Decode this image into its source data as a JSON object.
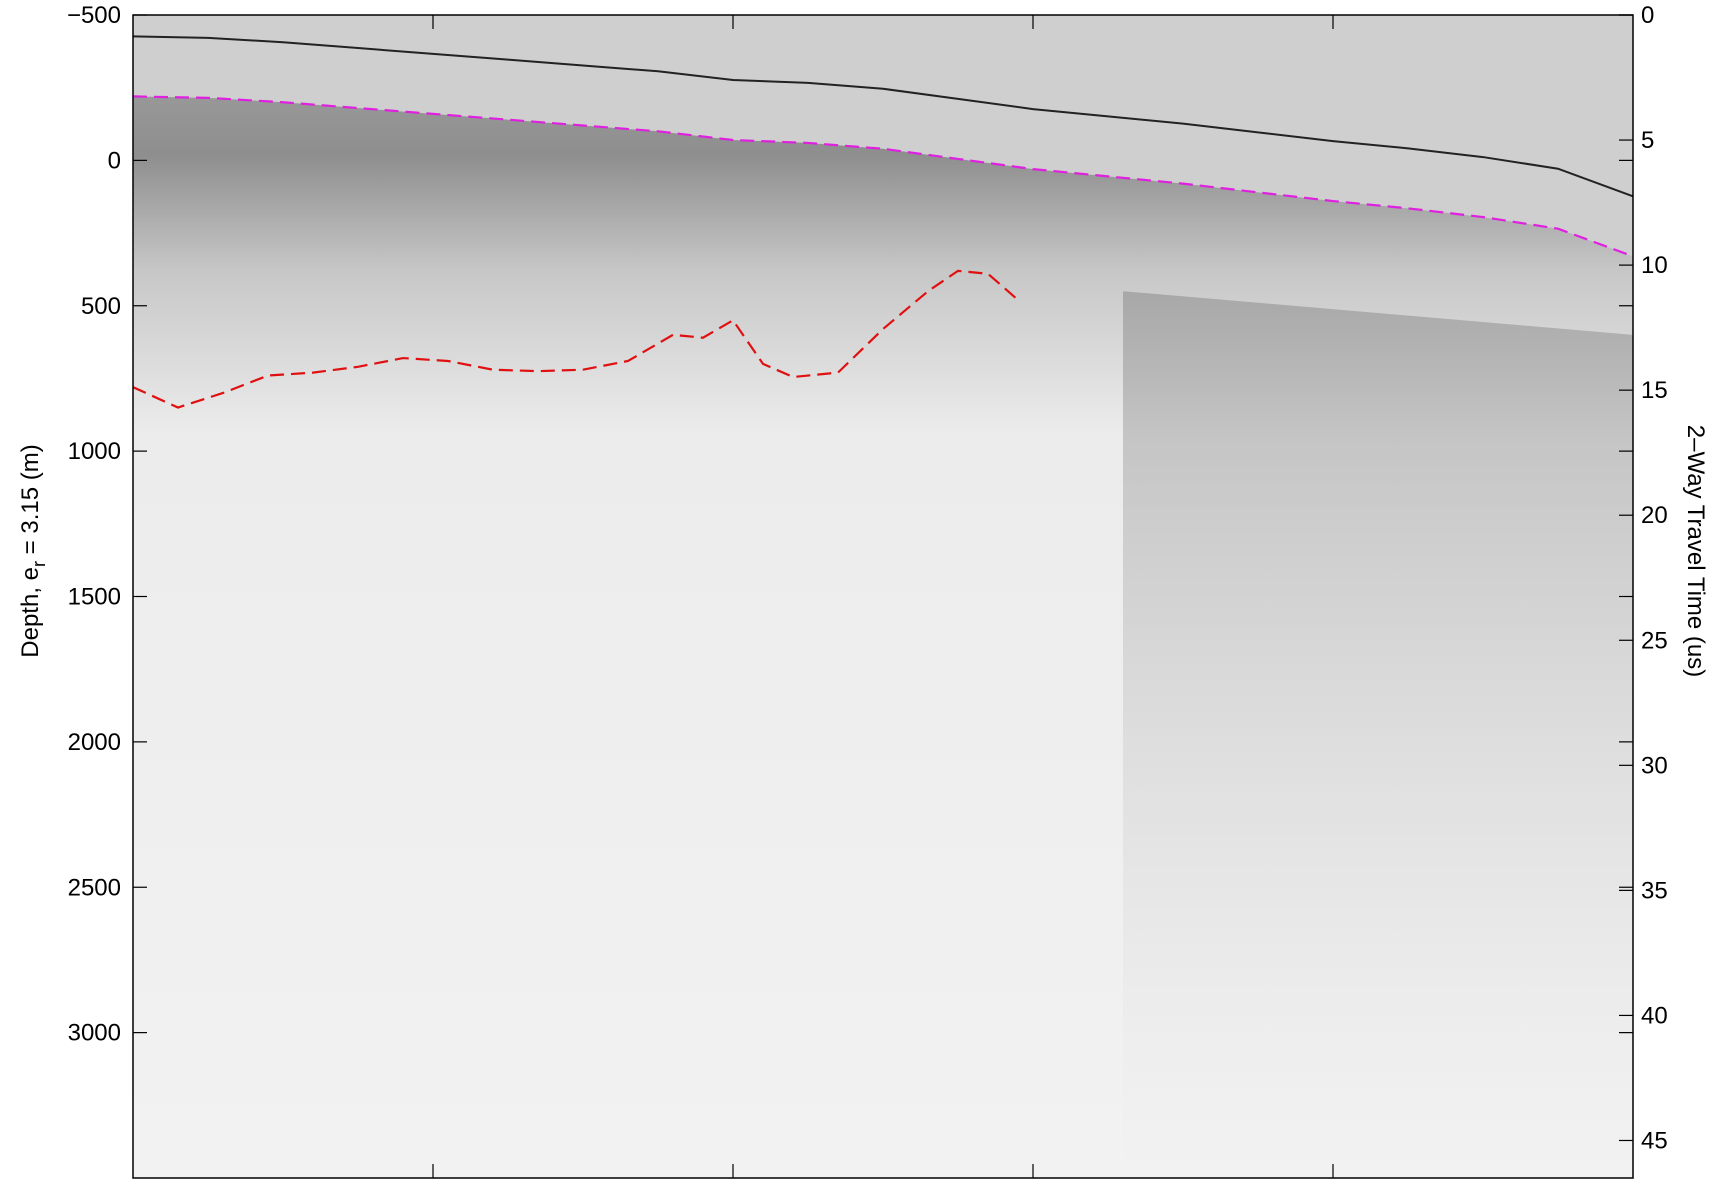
{
  "chart_data": {
    "type": "heatmap",
    "title": "",
    "xlabel": "",
    "ylabel": "Depth, e_r = 3.15 (m)",
    "ylabel_parts": {
      "main": "Depth, e",
      "subscript": "r",
      "rest": " = 3.15 (m)"
    },
    "y2label": "2–Way Travel Time (us)",
    "ylim": [
      -500,
      3500
    ],
    "y_reversed": true,
    "yticks": [
      -500,
      0,
      500,
      1000,
      1500,
      2000,
      2500,
      3000
    ],
    "ytick_labels": [
      "−500",
      "0",
      "500",
      "1000",
      "1500",
      "2000",
      "2500",
      "3000"
    ],
    "y2lim": [
      0,
      46.5
    ],
    "y2ticks": [
      0,
      5,
      10,
      15,
      20,
      25,
      30,
      35,
      40,
      45
    ],
    "y2tick_labels": [
      "0",
      "5",
      "10",
      "15",
      "20",
      "25",
      "30",
      "35",
      "40",
      "45"
    ],
    "x_trace_range": [
      0,
      1
    ],
    "xticks_fraction": [
      0.2,
      0.4,
      0.6,
      0.8
    ],
    "colormap": "grayscale",
    "grid": false,
    "series": [
      {
        "name": "",
        "role": "surface pick",
        "color": "#e020e0",
        "x": [
          0.0,
          0.05,
          0.1,
          0.15,
          0.2,
          0.25,
          0.3,
          0.35,
          0.4,
          0.45,
          0.5,
          0.55,
          0.6,
          0.65,
          0.7,
          0.75,
          0.8,
          0.85,
          0.9,
          0.95,
          1.0
        ],
        "y": [
          -220,
          -215,
          -200,
          -180,
          -160,
          -140,
          -120,
          -100,
          -70,
          -60,
          -40,
          -5,
          30,
          55,
          80,
          110,
          140,
          165,
          195,
          235,
          330
        ]
      },
      {
        "name": "",
        "role": "bed pick",
        "color": "#e01010",
        "x": [
          0.0,
          0.03,
          0.06,
          0.09,
          0.12,
          0.15,
          0.18,
          0.21,
          0.24,
          0.27,
          0.3,
          0.33,
          0.36,
          0.38,
          0.4,
          0.42,
          0.44,
          0.47,
          0.5,
          0.53,
          0.55,
          0.57,
          0.59
        ],
        "y": [
          780,
          850,
          800,
          740,
          730,
          710,
          680,
          690,
          720,
          725,
          720,
          690,
          600,
          610,
          550,
          700,
          745,
          730,
          580,
          450,
          380,
          390,
          480
        ]
      }
    ]
  }
}
